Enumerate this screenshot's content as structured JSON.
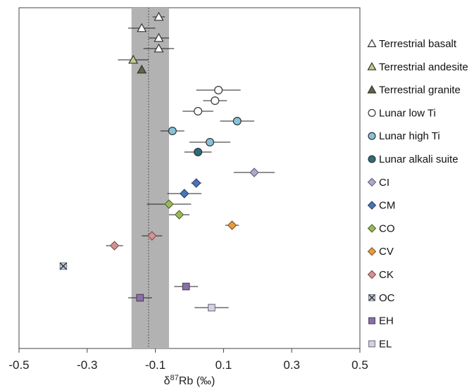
{
  "chart_data": {
    "type": "scatter",
    "title": "",
    "xlabel_prefix": "δ",
    "xlabel_sup": "87",
    "xlabel_suffix": "Rb (‰)",
    "xlim": [
      -0.5,
      0.5
    ],
    "xticks": [
      "-0.5",
      "-0.3",
      "-0.1",
      "0.1",
      "0.3",
      "0.5"
    ],
    "xtick_values": [
      -0.5,
      -0.3,
      -0.1,
      0.1,
      0.3,
      0.5
    ],
    "reference_band": {
      "from": -0.17,
      "to": -0.06,
      "color": "#b3b2b3"
    },
    "reference_line": {
      "x": -0.12
    },
    "legend_position": "right",
    "series": [
      {
        "name": "Terrestrial basalt",
        "marker": "triangle",
        "color": "#ffffff",
        "points": [
          {
            "x": -0.09,
            "err": 0.018
          },
          {
            "x": -0.14,
            "err": 0.04
          },
          {
            "x": -0.09,
            "err": 0.03
          },
          {
            "x": -0.09,
            "err": 0.045
          }
        ]
      },
      {
        "name": "Terrestrial andesite",
        "marker": "triangle",
        "color": "#c5cc8a",
        "points": [
          {
            "x": -0.165,
            "err": 0.045
          }
        ]
      },
      {
        "name": "Terrestrial granite",
        "marker": "triangle",
        "color": "#5b6a3d",
        "points": [
          {
            "x": -0.14,
            "err": 0.0
          }
        ]
      },
      {
        "name": "Lunar low Ti",
        "marker": "circle",
        "color": "#ffffff",
        "points": [
          {
            "x": 0.085,
            "err": 0.065
          },
          {
            "x": 0.075,
            "err": 0.035
          },
          {
            "x": 0.025,
            "err": 0.045
          }
        ]
      },
      {
        "name": "Lunar high Ti",
        "marker": "circle",
        "color": "#87c2dc",
        "points": [
          {
            "x": 0.14,
            "err": 0.05
          },
          {
            "x": -0.05,
            "err": 0.035
          },
          {
            "x": 0.06,
            "err": 0.06
          }
        ]
      },
      {
        "name": "Lunar alkali suite",
        "marker": "circle",
        "color": "#2b6d7b",
        "points": [
          {
            "x": 0.025,
            "err": 0.04
          }
        ]
      },
      {
        "name": "CI",
        "marker": "diamond",
        "color": "#b3a6cc",
        "points": [
          {
            "x": 0.19,
            "err": 0.06
          }
        ]
      },
      {
        "name": "CM",
        "marker": "diamond",
        "color": "#4a74b8",
        "points": [
          {
            "x": 0.02,
            "err": 0.015
          },
          {
            "x": -0.015,
            "err": 0.05
          }
        ]
      },
      {
        "name": "CO",
        "marker": "diamond",
        "color": "#9bb858",
        "points": [
          {
            "x": -0.06,
            "err": 0.065
          },
          {
            "x": -0.03,
            "err": 0.03
          }
        ]
      },
      {
        "name": "CV",
        "marker": "diamond",
        "color": "#e89a3c",
        "points": [
          {
            "x": 0.125,
            "err": 0.02
          }
        ]
      },
      {
        "name": "CK",
        "marker": "diamond",
        "color": "#d99090",
        "points": [
          {
            "x": -0.11,
            "err": 0.03
          },
          {
            "x": -0.22,
            "err": 0.025
          }
        ]
      },
      {
        "name": "OC",
        "marker": "x-square",
        "color": "#b7cdea",
        "points": [
          {
            "x": -0.37,
            "err": 0.0
          }
        ]
      },
      {
        "name": "EH",
        "marker": "square",
        "color": "#8a70a8",
        "points": [
          {
            "x": -0.01,
            "err": 0.035
          },
          {
            "x": -0.145,
            "err": 0.035
          }
        ]
      },
      {
        "name": "EL",
        "marker": "square",
        "color": "#d6cfe6",
        "points": [
          {
            "x": 0.065,
            "err": 0.05
          }
        ]
      }
    ]
  }
}
